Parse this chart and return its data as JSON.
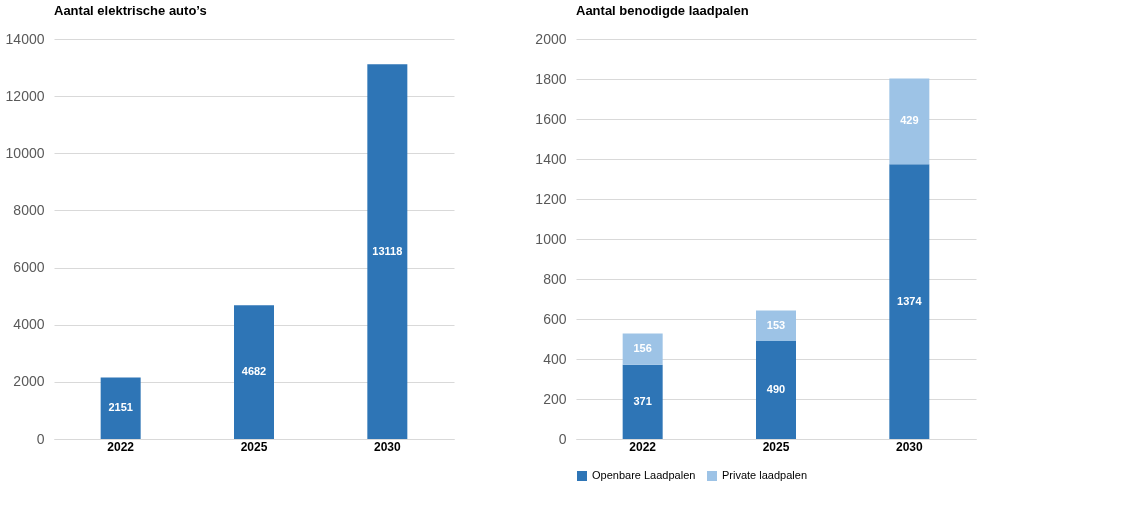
{
  "chart_data": [
    {
      "type": "bar",
      "title": "Aantal elektrische auto’s",
      "categories": [
        "2022",
        "2025",
        "2030"
      ],
      "values": [
        2151,
        4682,
        13118
      ],
      "color": "#2e75b6",
      "ylim": [
        0,
        14000
      ],
      "yticks": [
        0,
        2000,
        4000,
        6000,
        8000,
        10000,
        12000,
        14000
      ],
      "grid": "y",
      "data_labels": true
    },
    {
      "type": "bar",
      "title": "Aantal benodigde laadpalen",
      "categories": [
        "2022",
        "2025",
        "2030"
      ],
      "stacked": true,
      "series": [
        {
          "name": "Openbare Laadpalen",
          "color": "#2e75b6",
          "values": [
            371,
            490,
            1374
          ]
        },
        {
          "name": "Private laadpalen",
          "color": "#9dc3e6",
          "values": [
            156,
            153,
            429
          ]
        }
      ],
      "ylim": [
        0,
        2000
      ],
      "yticks": [
        0,
        200,
        400,
        600,
        800,
        1000,
        1200,
        1400,
        1600,
        1800,
        2000
      ],
      "grid": "y",
      "legend": "bottom",
      "data_labels": true
    }
  ]
}
